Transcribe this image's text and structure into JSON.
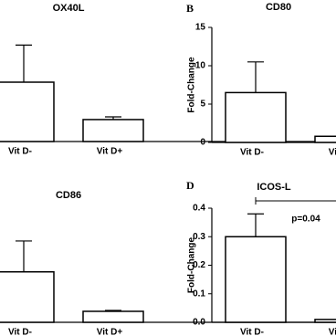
{
  "chart_data": [
    {
      "type": "bar",
      "title": "OX40L",
      "categories": [
        "Vit D-",
        "Vit D+"
      ],
      "values": [
        2.0,
        0.74
      ],
      "errors": [
        1.25,
        0.09
      ],
      "color": "#ffffff",
      "ylim": [
        0,
        4
      ]
    },
    {
      "type": "bar",
      "title": "CD80",
      "panel_label": "B",
      "y_label": "Fold-Change",
      "categories": [
        "Vit D-",
        "Vit D+"
      ],
      "values": [
        6.5,
        0.8
      ],
      "errors": [
        4.0,
        0.5
      ],
      "color": "#ffffff",
      "ylim": [
        0,
        15
      ],
      "yticks": [
        0,
        5,
        10,
        15
      ]
    },
    {
      "type": "bar",
      "title": "CD86",
      "categories": [
        "Vit D-",
        "Vit D+"
      ],
      "values": [
        1.7,
        0.37
      ],
      "errors": [
        1.04,
        0.03
      ],
      "color": "#ffffff",
      "ylim": [
        0,
        4
      ]
    },
    {
      "type": "bar",
      "title": "ICOS-L",
      "panel_label": "D",
      "y_label": "Fold-Change",
      "annotation": "p=0.04",
      "categories": [
        "Vit D-",
        "Vit D+"
      ],
      "values": [
        0.3,
        0.01
      ],
      "errors": [
        0.08,
        0.01
      ],
      "color": "#ffffff",
      "ylim": [
        0,
        0.4
      ],
      "yticks": [
        {
          "value": 0,
          "label": "0.0"
        },
        0.1,
        0.2,
        0.3,
        0.4
      ]
    }
  ]
}
